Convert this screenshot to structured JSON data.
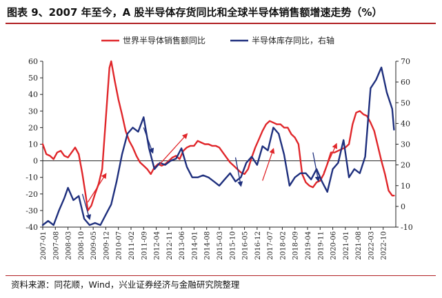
{
  "header": {
    "title": "图表 9、2007 年至今，A 股半导体存货同比和全球半导体销售额增速走势（%）"
  },
  "footer": {
    "source": "资料来源：同花顺，Wind，兴业证券经济与金融研究院整理"
  },
  "chart_data": {
    "type": "line",
    "grid": false,
    "legend_placement": "top",
    "colors": {
      "left_series": "#e0262a",
      "right_series": "#1e2f7d",
      "annotation_arrow": "#e0262a",
      "axis": "#222222"
    },
    "y_left": {
      "ylim": [
        -40,
        60
      ],
      "ticks": [
        "-40",
        "-30",
        "-20",
        "-10",
        "0",
        "10",
        "20",
        "30",
        "40",
        "50",
        "60"
      ]
    },
    "y_right": {
      "ylim": [
        -10,
        70
      ],
      "ticks": [
        "-10",
        "0",
        "10",
        "20",
        "30",
        "40",
        "50",
        "60",
        "70"
      ]
    },
    "x_range": [
      "2007-01",
      "2023-05"
    ],
    "x_ticks": [
      "2007-01",
      "2007-08",
      "2008-03",
      "2008-10",
      "2009-05",
      "2009-12",
      "2010-07",
      "2011-02",
      "2011-09",
      "2012-04",
      "2012-11",
      "2013-06",
      "2014-01",
      "2014-08",
      "2015-03",
      "2015-10",
      "2016-05",
      "2016-12",
      "2017-07",
      "2018-02",
      "2018-09",
      "2019-04",
      "2019-11",
      "2020-06",
      "2021-01",
      "2021-08",
      "2022-03",
      "2022-10"
    ],
    "series": [
      {
        "name": "世界半导体销售额同比",
        "axis": "left",
        "points": [
          [
            "2007-01",
            10
          ],
          [
            "2007-03",
            4
          ],
          [
            "2007-05",
            3
          ],
          [
            "2007-07",
            1
          ],
          [
            "2007-09",
            5
          ],
          [
            "2007-11",
            6
          ],
          [
            "2008-01",
            3
          ],
          [
            "2008-03",
            2
          ],
          [
            "2008-05",
            5
          ],
          [
            "2008-07",
            8
          ],
          [
            "2008-09",
            4
          ],
          [
            "2008-11",
            -8
          ],
          [
            "2009-01",
            -22
          ],
          [
            "2009-02",
            -30
          ],
          [
            "2009-04",
            -27
          ],
          [
            "2009-06",
            -20
          ],
          [
            "2009-08",
            -14
          ],
          [
            "2009-10",
            -5
          ],
          [
            "2009-12",
            25
          ],
          [
            "2010-02",
            56
          ],
          [
            "2010-03",
            60
          ],
          [
            "2010-05",
            48
          ],
          [
            "2010-07",
            37
          ],
          [
            "2010-09",
            28
          ],
          [
            "2010-11",
            18
          ],
          [
            "2011-01",
            12
          ],
          [
            "2011-03",
            8
          ],
          [
            "2011-05",
            3
          ],
          [
            "2011-07",
            -1
          ],
          [
            "2011-09",
            -3
          ],
          [
            "2011-11",
            -5
          ],
          [
            "2012-01",
            -8
          ],
          [
            "2012-03",
            -4
          ],
          [
            "2012-05",
            -2
          ],
          [
            "2012-07",
            -3
          ],
          [
            "2012-09",
            -2
          ],
          [
            "2012-11",
            0
          ],
          [
            "2013-01",
            2
          ],
          [
            "2013-03",
            3
          ],
          [
            "2013-05",
            1
          ],
          [
            "2013-07",
            6
          ],
          [
            "2013-09",
            8
          ],
          [
            "2013-11",
            9
          ],
          [
            "2014-01",
            9
          ],
          [
            "2014-03",
            12
          ],
          [
            "2014-05",
            11
          ],
          [
            "2014-07",
            10
          ],
          [
            "2014-09",
            10
          ],
          [
            "2014-11",
            9
          ],
          [
            "2015-01",
            9
          ],
          [
            "2015-03",
            8
          ],
          [
            "2015-05",
            5
          ],
          [
            "2015-07",
            2
          ],
          [
            "2015-09",
            -1
          ],
          [
            "2015-11",
            -3
          ],
          [
            "2016-01",
            -5
          ],
          [
            "2016-03",
            -7
          ],
          [
            "2016-05",
            -8
          ],
          [
            "2016-07",
            -5
          ],
          [
            "2016-09",
            2
          ],
          [
            "2016-11",
            8
          ],
          [
            "2017-01",
            13
          ],
          [
            "2017-03",
            18
          ],
          [
            "2017-05",
            22
          ],
          [
            "2017-07",
            24
          ],
          [
            "2017-09",
            23
          ],
          [
            "2017-11",
            22
          ],
          [
            "2018-01",
            22
          ],
          [
            "2018-03",
            20
          ],
          [
            "2018-05",
            20
          ],
          [
            "2018-07",
            16
          ],
          [
            "2018-09",
            14
          ],
          [
            "2018-11",
            10
          ],
          [
            "2019-01",
            -8
          ],
          [
            "2019-03",
            -13
          ],
          [
            "2019-05",
            -15
          ],
          [
            "2019-07",
            -16
          ],
          [
            "2019-09",
            -13
          ],
          [
            "2019-11",
            -12
          ],
          [
            "2020-01",
            -8
          ],
          [
            "2020-03",
            -2
          ],
          [
            "2020-05",
            5
          ],
          [
            "2020-07",
            5
          ],
          [
            "2020-09",
            6
          ],
          [
            "2020-11",
            7
          ],
          [
            "2021-01",
            8
          ],
          [
            "2021-03",
            10
          ],
          [
            "2021-05",
            22
          ],
          [
            "2021-07",
            29
          ],
          [
            "2021-09",
            30
          ],
          [
            "2021-11",
            28
          ],
          [
            "2022-01",
            27
          ],
          [
            "2022-03",
            23
          ],
          [
            "2022-05",
            18
          ],
          [
            "2022-07",
            9
          ],
          [
            "2022-09",
            0
          ],
          [
            "2022-11",
            -8
          ],
          [
            "2023-01",
            -18
          ],
          [
            "2023-03",
            -21
          ],
          [
            "2023-04",
            -21
          ]
        ]
      },
      {
        "name": "半导体库存同比，右轴",
        "axis": "right",
        "points": [
          [
            "2007-01",
            -9
          ],
          [
            "2007-04",
            -7
          ],
          [
            "2007-07",
            -9
          ],
          [
            "2007-10",
            -2
          ],
          [
            "2008-01",
            4
          ],
          [
            "2008-03",
            9
          ],
          [
            "2008-06",
            3
          ],
          [
            "2008-09",
            5
          ],
          [
            "2008-12",
            -6
          ],
          [
            "2009-03",
            -9
          ],
          [
            "2009-06",
            -8
          ],
          [
            "2009-09",
            -9
          ],
          [
            "2009-12",
            -4
          ],
          [
            "2010-03",
            1
          ],
          [
            "2010-06",
            12
          ],
          [
            "2010-09",
            25
          ],
          [
            "2010-12",
            35
          ],
          [
            "2011-03",
            38
          ],
          [
            "2011-06",
            36
          ],
          [
            "2011-09",
            43
          ],
          [
            "2011-12",
            28
          ],
          [
            "2012-03",
            18
          ],
          [
            "2012-06",
            21
          ],
          [
            "2012-09",
            20
          ],
          [
            "2012-12",
            22
          ],
          [
            "2013-03",
            23
          ],
          [
            "2013-06",
            28
          ],
          [
            "2013-09",
            19
          ],
          [
            "2013-12",
            14
          ],
          [
            "2014-03",
            14
          ],
          [
            "2014-06",
            15
          ],
          [
            "2014-09",
            14
          ],
          [
            "2014-12",
            12
          ],
          [
            "2015-03",
            10
          ],
          [
            "2015-06",
            13
          ],
          [
            "2015-09",
            16
          ],
          [
            "2015-12",
            12
          ],
          [
            "2016-03",
            14
          ],
          [
            "2016-06",
            21
          ],
          [
            "2016-09",
            24
          ],
          [
            "2016-12",
            20
          ],
          [
            "2017-03",
            29
          ],
          [
            "2017-06",
            27
          ],
          [
            "2017-09",
            38
          ],
          [
            "2017-12",
            35
          ],
          [
            "2018-03",
            25
          ],
          [
            "2018-06",
            10
          ],
          [
            "2018-09",
            14
          ],
          [
            "2018-12",
            16
          ],
          [
            "2019-03",
            16
          ],
          [
            "2019-06",
            13
          ],
          [
            "2019-09",
            18
          ],
          [
            "2019-12",
            12
          ],
          [
            "2020-03",
            7
          ],
          [
            "2020-06",
            18
          ],
          [
            "2020-09",
            21
          ],
          [
            "2020-12",
            32
          ],
          [
            "2021-03",
            14
          ],
          [
            "2021-06",
            18
          ],
          [
            "2021-09",
            16
          ],
          [
            "2021-12",
            24
          ],
          [
            "2022-03",
            57
          ],
          [
            "2022-06",
            61
          ],
          [
            "2022-09",
            67
          ],
          [
            "2022-12",
            55
          ],
          [
            "2023-03",
            47
          ],
          [
            "2023-04",
            37
          ]
        ]
      }
    ],
    "annotations": [
      {
        "type": "arrow",
        "color": "red",
        "from": [
          "2009-02",
          -25
        ],
        "to": [
          "2009-12",
          -8
        ]
      },
      {
        "type": "arrow",
        "color": "red",
        "from": [
          "2012-06",
          -2
        ],
        "to": [
          "2013-09",
          16
        ]
      },
      {
        "type": "arrow",
        "color": "red",
        "from": [
          "2017-03",
          -12
        ],
        "to": [
          "2017-09",
          7
        ]
      },
      {
        "type": "arrow",
        "color": "red",
        "from": [
          "2020-01",
          -7
        ],
        "to": [
          "2020-08",
          10
        ]
      },
      {
        "type": "arrow",
        "color": "navy",
        "from": [
          "2008-11",
          -20
        ],
        "to": [
          "2009-03",
          -35
        ]
      },
      {
        "type": "arrow",
        "color": "navy",
        "from": [
          "2011-09",
          20
        ],
        "to": [
          "2012-02",
          5
        ]
      },
      {
        "type": "arrow",
        "color": "navy",
        "from": [
          "2015-12",
          2
        ],
        "to": [
          "2016-03",
          -15
        ]
      },
      {
        "type": "arrow",
        "color": "navy",
        "from": [
          "2019-07",
          5
        ],
        "to": [
          "2019-10",
          -12
        ]
      }
    ]
  }
}
